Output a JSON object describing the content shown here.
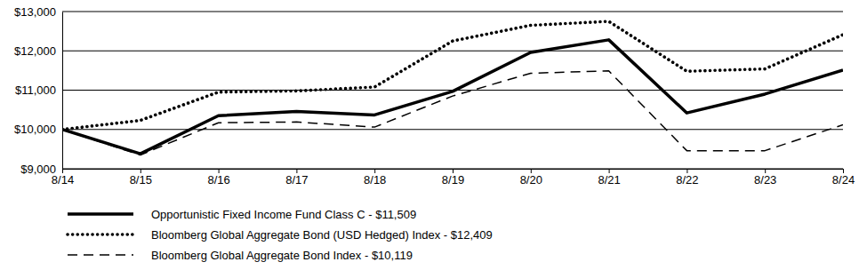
{
  "chart_data": {
    "type": "line",
    "categories": [
      "8/14",
      "8/15",
      "8/16",
      "8/17",
      "8/18",
      "8/19",
      "8/20",
      "8/21",
      "8/22",
      "8/23",
      "8/24"
    ],
    "series": [
      {
        "name": "Opportunistic Fixed Income Fund Class C - $11,509",
        "color": "#000000",
        "line_style": "solid",
        "values": [
          10000,
          9380,
          10350,
          10460,
          10370,
          10970,
          11960,
          12280,
          10420,
          10900,
          11509
        ]
      },
      {
        "name": "Bloomberg Global Aggregate Bond (USD Hedged) Index - $12,409",
        "color": "#000000",
        "line_style": "dotted",
        "values": [
          10000,
          10230,
          10950,
          10980,
          11080,
          12250,
          12650,
          12750,
          11480,
          11540,
          12409
        ]
      },
      {
        "name": "Bloomberg Global Aggregate Bond Index - $10,119",
        "color": "#000000",
        "line_style": "dashed",
        "values": [
          10000,
          9350,
          10170,
          10190,
          10060,
          10850,
          11430,
          11490,
          9460,
          9460,
          10119
        ]
      }
    ],
    "ylim": [
      9000,
      13000
    ],
    "yticks": [
      {
        "value": 9000,
        "label": "$9,000"
      },
      {
        "value": 10000,
        "label": "$10,000"
      },
      {
        "value": 11000,
        "label": "$11,000"
      },
      {
        "value": 12000,
        "label": "$12,000"
      },
      {
        "value": 13000,
        "label": "$13,000"
      }
    ],
    "grid": true,
    "legend": "bottom"
  }
}
